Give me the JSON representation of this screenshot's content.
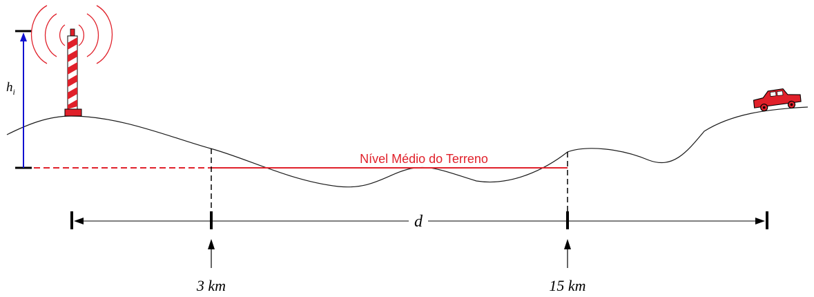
{
  "labels": {
    "height_symbol": "h",
    "height_subscript": "i",
    "mean_level": "Nível Médio do Terreno",
    "distance_symbol": "d",
    "start_marker": "3 km",
    "end_marker": "15 km"
  },
  "colors": {
    "terrain": "#1a1a1a",
    "mean_level": "#e0202a",
    "height_arrow": "#1010d0",
    "tower_red": "#e0202a",
    "car_red": "#e0202a",
    "dimension": "#000000"
  },
  "icons": {
    "tower": "radio-tower-icon",
    "car": "car-icon"
  }
}
